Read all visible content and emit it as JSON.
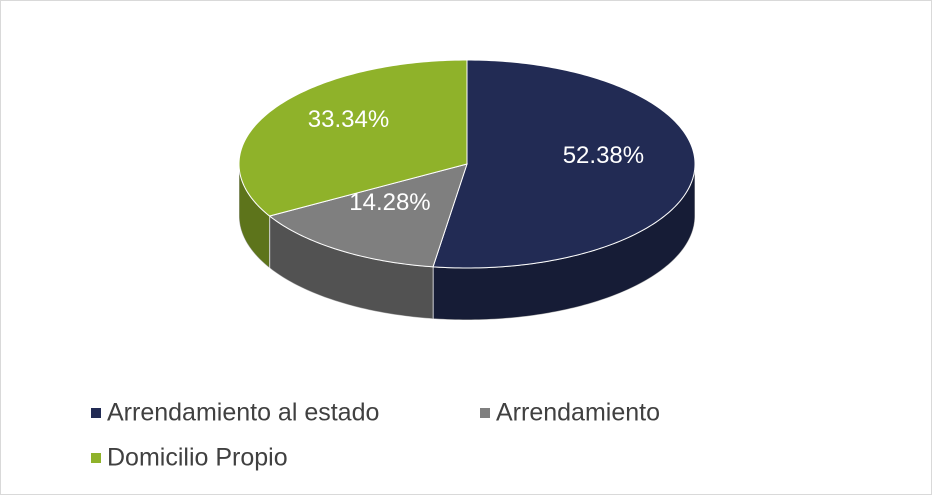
{
  "chart_data": {
    "type": "pie",
    "categories": [
      "Arrendamiento al estado",
      "Arrendamiento",
      "Domicilio Propio"
    ],
    "values": [
      52.38,
      14.28,
      33.34
    ],
    "value_labels": [
      "52.38%",
      "14.28%",
      "33.34%"
    ],
    "colors": [
      "#222b54",
      "#7f7f7f",
      "#8fb22a"
    ],
    "legend": "bottom"
  }
}
